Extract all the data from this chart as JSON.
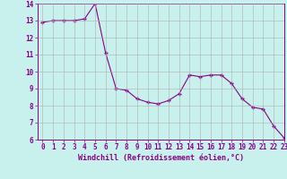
{
  "x": [
    0,
    1,
    2,
    3,
    4,
    5,
    6,
    7,
    8,
    9,
    10,
    11,
    12,
    13,
    14,
    15,
    16,
    17,
    18,
    19,
    20,
    21,
    22,
    23
  ],
  "y": [
    12.9,
    13.0,
    13.0,
    13.0,
    13.1,
    14.0,
    11.1,
    9.0,
    8.9,
    8.4,
    8.2,
    8.1,
    8.3,
    8.7,
    9.8,
    9.7,
    9.8,
    9.8,
    9.3,
    8.4,
    7.9,
    7.8,
    6.8,
    6.1
  ],
  "line_color": "#880088",
  "marker": "+",
  "marker_size": 3.5,
  "marker_lw": 1.0,
  "bg_color": "#c8f0ec",
  "grid_color": "#b0b0b0",
  "xlabel": "Windchill (Refroidissement éolien,°C)",
  "xlabel_color": "#880088",
  "tick_color": "#880088",
  "spine_color": "#880088",
  "ylim": [
    6,
    14
  ],
  "xlim": [
    -0.5,
    23
  ],
  "yticks": [
    6,
    7,
    8,
    9,
    10,
    11,
    12,
    13,
    14
  ],
  "xticks": [
    0,
    1,
    2,
    3,
    4,
    5,
    6,
    7,
    8,
    9,
    10,
    11,
    12,
    13,
    14,
    15,
    16,
    17,
    18,
    19,
    20,
    21,
    22,
    23
  ],
  "tick_fontsize": 5.5,
  "xlabel_fontsize": 6.0,
  "linewidth": 0.8
}
